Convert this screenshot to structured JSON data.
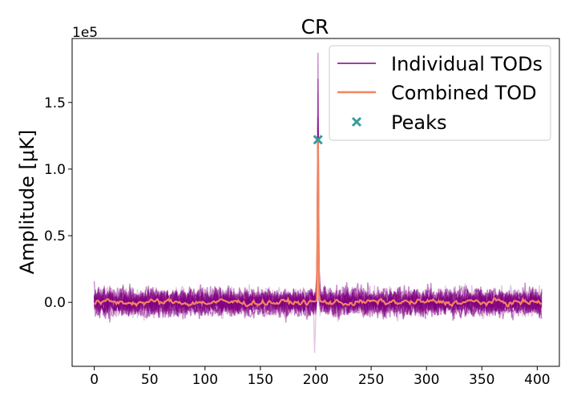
{
  "chart_data": {
    "type": "line",
    "title": "CR",
    "xlabel": "",
    "ylabel": "Amplitude [$\\mu$K]",
    "ylabel_display": "Amplitude [μK]",
    "y_offset_text": "1e5",
    "xlim": [
      -20,
      420
    ],
    "ylim": [
      -0.48,
      1.98
    ],
    "y_scale_factor": 100000,
    "x_ticks": [
      0,
      50,
      100,
      150,
      200,
      250,
      300,
      350,
      400
    ],
    "x_tick_labels": [
      "0",
      "50",
      "100",
      "150",
      "200",
      "250",
      "300",
      "350",
      "400"
    ],
    "y_ticks": [
      0.0,
      0.5,
      1.0,
      1.5
    ],
    "y_tick_labels": [
      "0.0",
      "0.5",
      "1.0",
      "1.5"
    ],
    "grid": false,
    "legend_position": "top-right",
    "n_samples": 405,
    "series": [
      {
        "name": "Individual TODs",
        "color": "#800080",
        "kind": "band",
        "noise_amplitude": 0.12,
        "peak_x": 202,
        "peak_max": 1.88,
        "min": -0.38,
        "count": 20
      },
      {
        "name": "Combined TOD",
        "color": "#f4845f",
        "kind": "line",
        "baseline": 0.0,
        "noise_amplitude": 0.02,
        "peak_x": 202,
        "peak_value": 1.22
      },
      {
        "name": "Peaks",
        "color": "#3a9a9e",
        "kind": "marker",
        "marker": "x",
        "points": [
          {
            "x": 202,
            "y": 1.22
          }
        ]
      }
    ]
  }
}
